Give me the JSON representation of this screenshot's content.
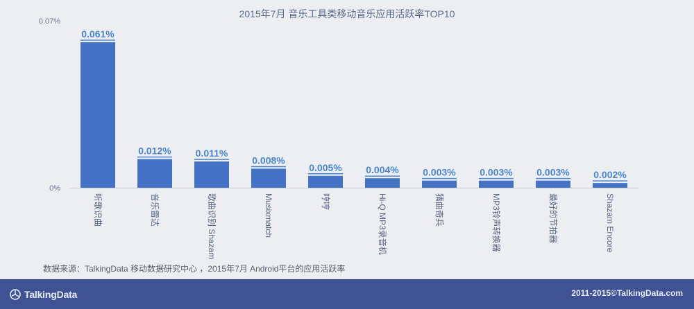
{
  "chart_data": {
    "type": "bar",
    "title": "2015年7月 音乐工具类移动音乐应用活跃率TOP10",
    "categories": [
      "听歌识曲",
      "音乐雷达",
      "歌曲识别 Shazam",
      "Musixmatch",
      "哼哼",
      "Hi-Q MP3录音机",
      "猜曲奇兵",
      "MP3铃声转换器",
      "最好的节拍器",
      "Shazam Encore"
    ],
    "values": [
      0.061,
      0.012,
      0.011,
      0.008,
      0.005,
      0.004,
      0.003,
      0.003,
      0.003,
      0.002
    ],
    "value_labels": [
      "0.061%",
      "0.012%",
      "0.011%",
      "0.008%",
      "0.005%",
      "0.004%",
      "0.003%",
      "0.003%",
      "0.003%",
      "0.002%"
    ],
    "y_ticks": [
      "0%",
      "0.07%"
    ],
    "ylim": [
      0,
      0.07
    ],
    "bar_color": "#4472c4",
    "label_color": "#4a86d0",
    "grid": false
  },
  "source_note": "数据来源：TalkingData 移动数据研究中心 ，2015年7月 Android平台的应用活跃率",
  "footer": {
    "logo_text": "TalkingData",
    "logo_icon": "talkingdata-logo-icon",
    "copyright": "2011-2015©TalkingData.com",
    "background": "#3e5294"
  }
}
